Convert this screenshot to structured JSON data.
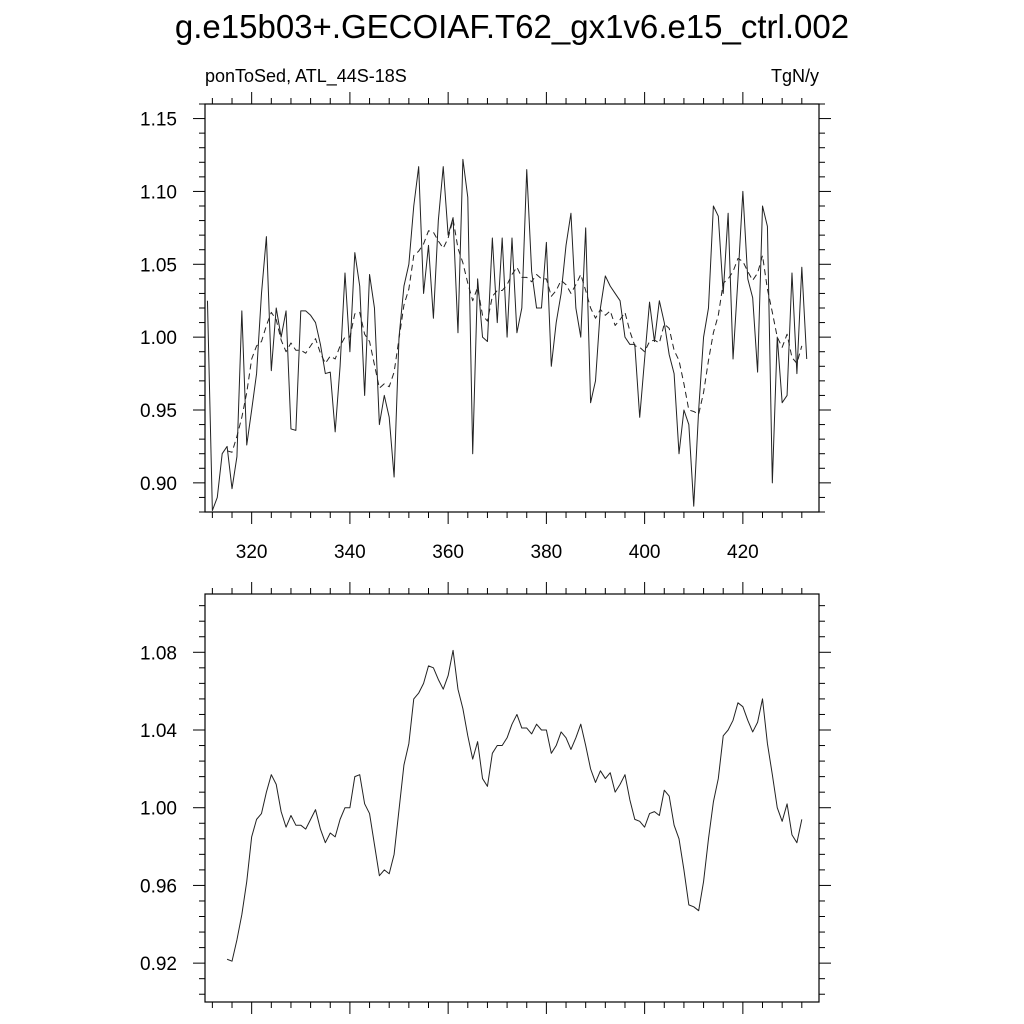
{
  "title": "g.e15b03+.GECOIAF.T62_gx1v6.e15_ctrl.002",
  "chart_data": [
    {
      "type": "line",
      "left_label": "ponToSed, ATL_44S-18S",
      "right_label": "TgN/y",
      "xlim": [
        310.5,
        435.5
      ],
      "ylim": [
        0.88,
        1.16
      ],
      "x_ticks": [
        320,
        340,
        360,
        380,
        400,
        420
      ],
      "y_ticks": [
        0.9,
        0.95,
        1.0,
        1.05,
        1.1,
        1.15
      ],
      "y_tick_labels": [
        "0.90",
        "0.95",
        "1.00",
        "1.05",
        "1.10",
        "1.15"
      ],
      "x_start": 311,
      "series": [
        {
          "style": "solid",
          "values": [
            1.025,
            0.881,
            0.89,
            0.92,
            0.925,
            0.896,
            0.918,
            1.018,
            0.926,
            0.95,
            0.975,
            1.03,
            1.069,
            0.977,
            1.02,
            1.0,
            1.018,
            0.937,
            0.936,
            1.018,
            1.018,
            1.015,
            1.01,
            0.995,
            0.975,
            0.976,
            0.935,
            0.98,
            1.044,
            0.99,
            1.058,
            1.035,
            0.96,
            1.043,
            1.02,
            0.94,
            0.96,
            0.945,
            0.904,
            1.0,
            1.035,
            1.05,
            1.09,
            1.117,
            1.03,
            1.063,
            1.013,
            1.08,
            1.117,
            1.07,
            1.082,
            1.003,
            1.122,
            1.096,
            0.92,
            1.04,
            1.0,
            0.997,
            1.068,
            1.01,
            1.068,
            1.0,
            1.068,
            1.003,
            1.02,
            1.115,
            1.045,
            1.02,
            1.02,
            1.065,
            0.98,
            1.01,
            1.03,
            1.063,
            1.085,
            1.02,
            1.0,
            1.075,
            0.955,
            0.97,
            1.02,
            1.042,
            1.035,
            1.03,
            1.025,
            1.0,
            0.995,
            0.995,
            0.945,
            0.985,
            1.024,
            0.997,
            1.025,
            1.01,
            0.988,
            0.975,
            0.92,
            0.95,
            0.94,
            0.884,
            0.95,
            1.0,
            1.02,
            1.09,
            1.083,
            1.03,
            1.085,
            0.985,
            1.04,
            1.1,
            1.04,
            1.027,
            0.976,
            1.09,
            1.076,
            0.9,
            1.0,
            0.955,
            0.96,
            1.044,
            0.975,
            1.048,
            0.985
          ]
        },
        {
          "style": "dashed",
          "values": [
            null,
            null,
            null,
            null,
            0.922,
            0.921,
            0.932,
            0.945,
            0.962,
            0.985,
            0.994,
            0.997,
            1.008,
            1.017,
            1.012,
            0.998,
            0.99,
            0.996,
            0.991,
            0.991,
            0.989,
            0.994,
            0.999,
            0.989,
            0.982,
            0.987,
            0.985,
            0.994,
            1.0,
            1.0,
            1.016,
            1.017,
            1.002,
            0.997,
            0.981,
            0.965,
            0.968,
            0.966,
            0.976,
            0.999,
            1.022,
            1.033,
            1.056,
            1.059,
            1.064,
            1.073,
            1.072,
            1.066,
            1.061,
            1.068,
            1.081,
            1.061,
            1.051,
            1.037,
            1.025,
            1.034,
            1.015,
            1.011,
            1.028,
            1.032,
            1.032,
            1.036,
            1.043,
            1.048,
            1.041,
            1.041,
            1.038,
            1.043,
            1.04,
            1.04,
            1.028,
            1.032,
            1.039,
            1.036,
            1.03,
            1.036,
            1.043,
            1.032,
            1.02,
            1.013,
            1.019,
            1.015,
            1.018,
            1.008,
            1.012,
            1.017,
            1.004,
            0.994,
            0.993,
            0.99,
            0.997,
            0.998,
            0.996,
            1.009,
            1.006,
            0.991,
            0.984,
            0.968,
            0.95,
            0.949,
            0.947,
            0.962,
            0.984,
            1.003,
            1.015,
            1.037,
            1.04,
            1.045,
            1.054,
            1.052,
            1.045,
            1.039,
            1.044,
            1.056,
            1.033,
            1.017,
            1.0,
            0.993,
            1.002,
            0.986,
            0.982,
            0.994,
            null
          ]
        }
      ]
    },
    {
      "type": "line",
      "xlim": [
        310.5,
        435.5
      ],
      "ylim": [
        0.9,
        1.11
      ],
      "x_ticks": [
        320,
        340,
        360,
        380,
        400,
        420
      ],
      "y_ticks": [
        0.92,
        0.96,
        1.0,
        1.04,
        1.08
      ],
      "y_tick_labels": [
        "0.92",
        "0.96",
        "1.00",
        "1.04",
        "1.08"
      ],
      "x_start": 311,
      "series": [
        {
          "style": "solid",
          "values": [
            null,
            null,
            null,
            null,
            0.922,
            0.921,
            0.932,
            0.945,
            0.962,
            0.985,
            0.994,
            0.997,
            1.008,
            1.017,
            1.012,
            0.998,
            0.99,
            0.996,
            0.991,
            0.991,
            0.989,
            0.994,
            0.999,
            0.989,
            0.982,
            0.987,
            0.985,
            0.994,
            1.0,
            1.0,
            1.016,
            1.017,
            1.002,
            0.997,
            0.981,
            0.965,
            0.968,
            0.966,
            0.976,
            0.999,
            1.022,
            1.033,
            1.056,
            1.059,
            1.064,
            1.073,
            1.072,
            1.066,
            1.061,
            1.068,
            1.081,
            1.061,
            1.051,
            1.037,
            1.025,
            1.034,
            1.015,
            1.011,
            1.028,
            1.032,
            1.032,
            1.036,
            1.043,
            1.048,
            1.041,
            1.041,
            1.038,
            1.043,
            1.04,
            1.04,
            1.028,
            1.032,
            1.039,
            1.036,
            1.03,
            1.036,
            1.043,
            1.032,
            1.02,
            1.013,
            1.019,
            1.015,
            1.018,
            1.008,
            1.012,
            1.017,
            1.004,
            0.994,
            0.993,
            0.99,
            0.997,
            0.998,
            0.996,
            1.009,
            1.006,
            0.991,
            0.984,
            0.968,
            0.95,
            0.949,
            0.947,
            0.962,
            0.984,
            1.003,
            1.015,
            1.037,
            1.04,
            1.045,
            1.054,
            1.052,
            1.045,
            1.039,
            1.044,
            1.056,
            1.033,
            1.017,
            1.0,
            0.993,
            1.002,
            0.986,
            0.982,
            0.994,
            null
          ]
        }
      ]
    }
  ]
}
